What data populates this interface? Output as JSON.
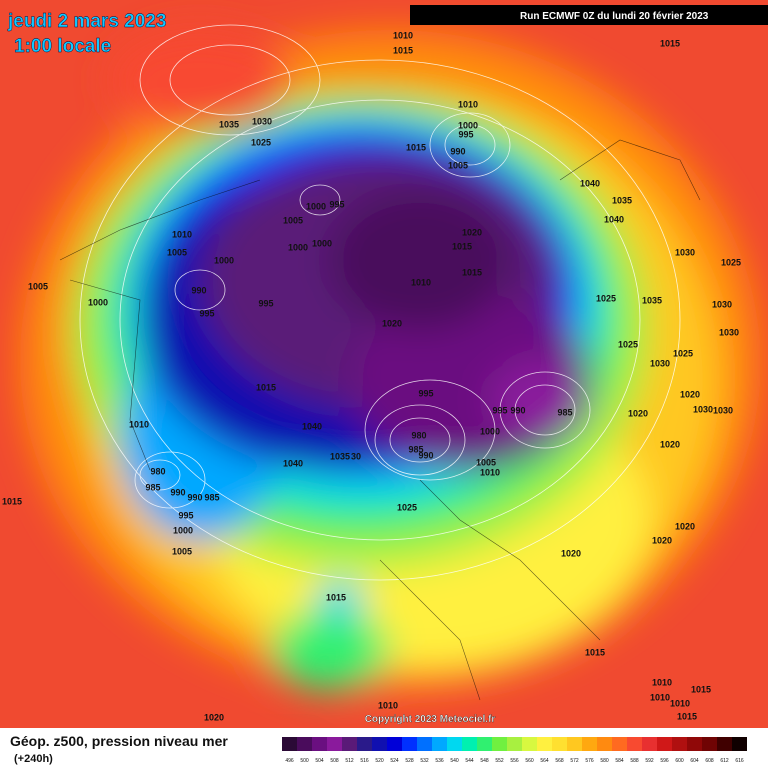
{
  "header": {
    "date": "jeudi 2 mars 2023",
    "time": "1:00 locale",
    "run": "Run ECMWF 0Z du lundi 20 février 2023"
  },
  "copyright": "Copyright 2023 Meteociel.fr",
  "legend": {
    "title": "Géop. z500, pression niveau mer",
    "subtitle": "(+240h)",
    "levels": [
      496,
      500,
      504,
      508,
      512,
      516,
      520,
      524,
      528,
      532,
      536,
      540,
      544,
      548,
      552,
      556,
      560,
      564,
      568,
      572,
      576,
      580,
      584,
      588,
      592,
      596,
      600,
      604,
      608,
      612,
      616
    ],
    "colors": [
      "#2b0a36",
      "#4a0c5c",
      "#6a0f80",
      "#8a1a9c",
      "#5a1a78",
      "#2a1a8a",
      "#1010b0",
      "#0000d8",
      "#0030ff",
      "#0070ff",
      "#00a8ff",
      "#00d8f0",
      "#00f0b0",
      "#30f070",
      "#70f040",
      "#a8f040",
      "#d8f840",
      "#fff040",
      "#ffe030",
      "#ffc820",
      "#ffa810",
      "#ff8a10",
      "#ff6a20",
      "#f84a30",
      "#e83030",
      "#d01818",
      "#b01010",
      "#900808",
      "#700404",
      "#400000",
      "#100000"
    ]
  },
  "isobar_labels": [
    1010,
    1015,
    1015,
    1035,
    1030,
    1025,
    1010,
    1000,
    995,
    1015,
    990,
    1005,
    1040,
    1035,
    1040,
    1000,
    995,
    1005,
    1010,
    1005,
    1000,
    1000,
    1020,
    1015,
    1000,
    1030,
    1025,
    1005,
    990,
    1015,
    1010,
    1000,
    995,
    995,
    1025,
    1035,
    1030,
    1020,
    1030,
    1025,
    1025,
    1030,
    1015,
    995,
    1020,
    995,
    990,
    985,
    1020,
    1030,
    1030,
    1010,
    1040,
    980,
    1000,
    985,
    990,
    1020,
    1035,
    30,
    1040,
    1005,
    1010,
    980,
    985,
    990,
    990,
    985,
    1025,
    995,
    1015,
    1020,
    1000,
    1020,
    1005,
    1020,
    1015,
    1015,
    1010,
    1015,
    1010,
    1015,
    1010,
    1020,
    1010
  ]
}
